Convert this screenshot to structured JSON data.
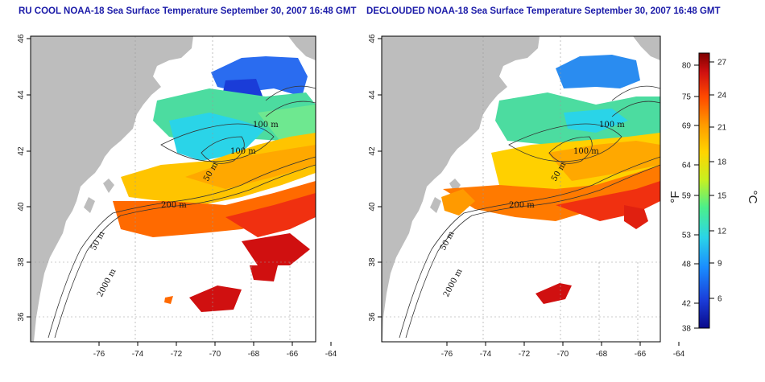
{
  "panels": [
    {
      "title": "RU COOL NOAA-18 Sea Surface Temperature September 30, 2007 16:48 GMT"
    },
    {
      "title": "DECLOUDED NOAA-18 Sea Surface Temperature September 30, 2007 16:48 GMT"
    }
  ],
  "map_axes": {
    "x_ticks": [
      "-76",
      "-74",
      "-72",
      "-70",
      "-68",
      "-66",
      "-64"
    ],
    "y_ticks": [
      "36",
      "38",
      "40",
      "42",
      "44",
      "46"
    ],
    "x_range": [
      -77.2,
      -62.9
    ],
    "y_range": [
      35.1,
      46.0
    ],
    "grid": "dotted"
  },
  "contour_labels": [
    "100 m",
    "100 m",
    "50 m",
    "200 m",
    "50 m",
    "2000 m"
  ],
  "colorbar": {
    "fahrenheit_ticks": [
      "80",
      "75",
      "69",
      "64",
      "59",
      "53",
      "48",
      "42",
      "38"
    ],
    "celsius_ticks": [
      "27",
      "24",
      "21",
      "18",
      "15",
      "12",
      "9",
      "6"
    ],
    "fahrenheit_label": "°F",
    "celsius_label": "°C",
    "colors": [
      "#7e0000",
      "#d01010",
      "#ff4a00",
      "#ff9a00",
      "#ffd400",
      "#c8f020",
      "#4cf08a",
      "#2ad4e8",
      "#1a8cff",
      "#1a3cd8",
      "#0a0a8a"
    ]
  },
  "colors": {
    "land": "#bdbdbd",
    "title": "#1a1aa8"
  }
}
